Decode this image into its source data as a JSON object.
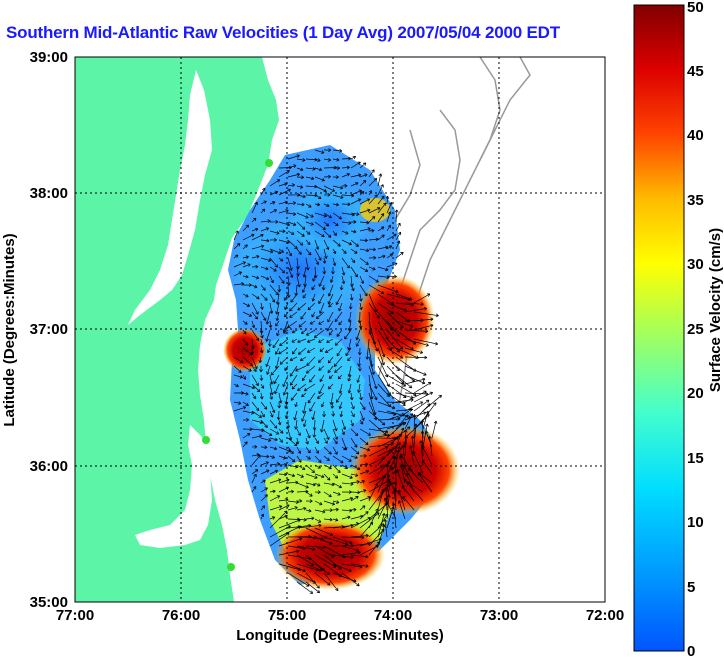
{
  "title": "Southern Mid-Atlantic Raw Velocities (1 Day Avg) 2007/05/04 2000 EDT",
  "map": {
    "x_label": "Longitude (Degrees:Minutes)",
    "y_label": "Latitude (Degrees:Minutes)",
    "x_ticks": [
      "77:00",
      "76:00",
      "75:00",
      "74:00",
      "73:00",
      "72:00"
    ],
    "y_ticks": [
      "39:00",
      "38:00",
      "37:00",
      "36:00",
      "35:00"
    ],
    "lon_range": [
      -77,
      -72
    ],
    "lat_range": [
      35,
      39
    ],
    "grid": true,
    "land_color": "#5cf5a8",
    "bathymetry_color": "#999999",
    "station_color": "#33dd33",
    "vector_color": "#000000"
  },
  "colorbar": {
    "label": "Surface Velocity (cm/s)",
    "min": 0,
    "max": 50,
    "ticks": [
      "0",
      "5",
      "10",
      "15",
      "20",
      "25",
      "30",
      "35",
      "40",
      "45",
      "50"
    ]
  }
}
